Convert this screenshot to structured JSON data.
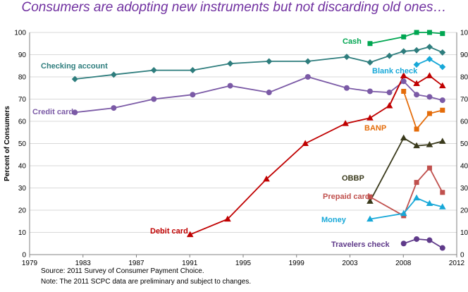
{
  "title": "Consumers are adopting new instruments but not discarding old ones…",
  "footnotes": {
    "source": "Source: 2011 Survey of Consumer Payment Choice.",
    "note": "Note: The 2011 SCPC data are preliminary and subject to changes."
  },
  "chart_data": {
    "type": "line",
    "title": "Consumers are adopting new instruments but not discarding old ones…",
    "xlabel": "",
    "ylabel": "Percent of Consumers",
    "xlim": [
      1979,
      2012
    ],
    "ylim": [
      0,
      100
    ],
    "xticks": [
      "1979",
      "1983",
      "1987",
      "1991",
      "1995",
      "1999",
      "2003",
      "2008",
      "2012"
    ],
    "yticks": [
      "0",
      "10",
      "20",
      "30",
      "40",
      "50",
      "60",
      "70",
      "80",
      "90",
      "100"
    ],
    "grid": "horizontal",
    "series": [
      {
        "name": "Cash",
        "color": "#00a651",
        "marker": "square",
        "x": [
          2005.3,
          2007.9,
          2008.9,
          2009.9,
          2010.9
        ],
        "y": [
          95,
          98,
          100,
          100,
          99.5
        ]
      },
      {
        "name": "Checking account",
        "color": "#2e7d7d",
        "marker": "diamond",
        "x": [
          1982.5,
          1985.5,
          1988.6,
          1991.6,
          1994.5,
          1997.5,
          2000.5,
          2003.5,
          2005.3,
          2006.8,
          2007.9,
          2008.9,
          2009.9,
          2010.9
        ],
        "y": [
          79,
          81,
          83,
          83,
          86,
          87,
          87,
          89,
          86.5,
          89.5,
          91.5,
          92,
          93.5,
          91
        ]
      },
      {
        "name": "Blank check",
        "color": "#17a8d8",
        "marker": "diamond",
        "x": [
          2008.9,
          2009.9,
          2010.9
        ],
        "y": [
          85.5,
          88,
          84.5
        ]
      },
      {
        "name": "Credit card",
        "color": "#7b5aa6",
        "marker": "circle",
        "x": [
          1982.5,
          1985.5,
          1988.6,
          1991.6,
          1994.5,
          1997.5,
          2000.5,
          2003.5,
          2005.3,
          2006.8,
          2007.9,
          2008.9,
          2009.9,
          2010.9
        ],
        "y": [
          64,
          66,
          70,
          72,
          76,
          73,
          80,
          75,
          73.5,
          73,
          78,
          72,
          71,
          69.5
        ]
      },
      {
        "name": "",
        "color": "#c00000",
        "marker": "triangle",
        "x": [
          2006.8,
          2007.9,
          2008.9,
          2009.9,
          2010.9
        ],
        "y": [
          67,
          80.5,
          77,
          80.5,
          76
        ]
      },
      {
        "name": "BANP",
        "color": "#e46c0a",
        "marker": "square",
        "x": [
          2007.9,
          2008.9,
          2009.9,
          2010.9
        ],
        "y": [
          73.5,
          56.5,
          63.5,
          65
        ]
      },
      {
        "name": "Debit card",
        "color": "#c00000",
        "marker": "triangle",
        "x": [
          1991.4,
          1994.3,
          1997.3,
          2000.3,
          2003.4,
          2005.3,
          2006.8,
          2007.9
        ],
        "y": [
          9,
          16,
          34,
          50,
          59,
          61.5,
          67,
          80.5
        ]
      },
      {
        "name": "OBBP",
        "color": "#3a3a1c",
        "marker": "triangle",
        "x": [
          2005.3,
          2007.9,
          2008.9,
          2009.9,
          2010.9
        ],
        "y": [
          24,
          52.5,
          49,
          49.5,
          51
        ]
      },
      {
        "name": "Prepaid card",
        "color": "#c0504d",
        "marker": "square",
        "x": [
          2005.3,
          2007.9,
          2008.9,
          2009.9,
          2010.9
        ],
        "y": [
          26,
          17.5,
          32.5,
          39,
          28
        ]
      },
      {
        "name": "Money",
        "color": "#17a8d8",
        "marker": "triangle",
        "x": [
          2005.3,
          2007.9,
          2008.9,
          2009.9,
          2010.9
        ],
        "y": [
          16,
          18.5,
          25.5,
          23,
          21.5
        ]
      },
      {
        "name": "Travelers check",
        "color": "#5f3a8a",
        "marker": "circle",
        "x": [
          2007.9,
          2008.9,
          2009.9,
          2010.9
        ],
        "y": [
          5,
          7,
          6.5,
          3
        ]
      }
    ]
  }
}
